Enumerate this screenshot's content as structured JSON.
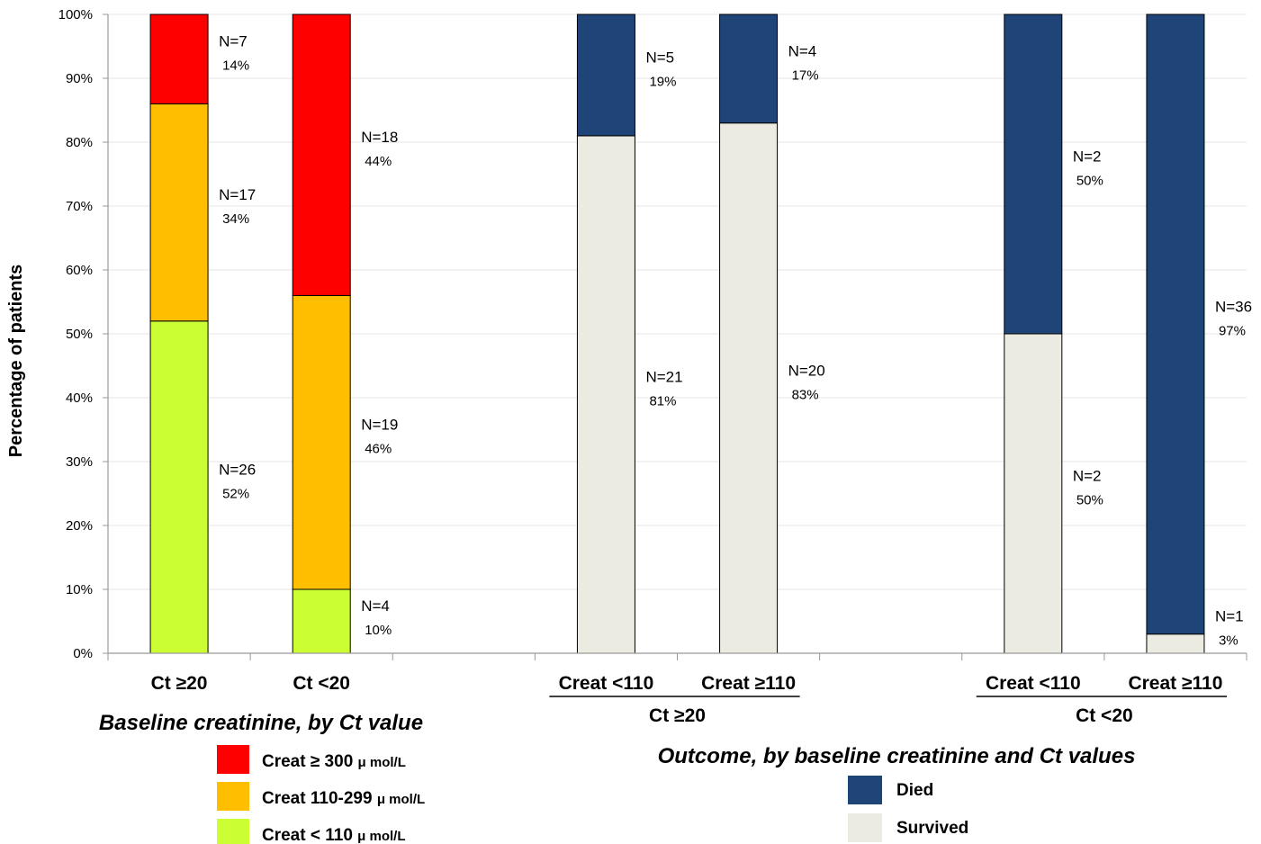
{
  "chart_data": {
    "type": "bar",
    "stacked": true,
    "ylabel": "Percentage of patients",
    "ylim": [
      0,
      100
    ],
    "yticks": [
      "0%",
      "10%",
      "20%",
      "30%",
      "40%",
      "50%",
      "60%",
      "70%",
      "80%",
      "90%",
      "100%"
    ],
    "grid": true,
    "colors": {
      "creat_high": "#ff0000",
      "creat_mid": "#ffbf00",
      "creat_low": "#ccff33",
      "died": "#1f4477",
      "survived": "#ecebe1"
    },
    "bars": [
      {
        "category": "Ct ≥20",
        "segments": [
          {
            "key": "creat_low",
            "value": 52,
            "n": "N=26",
            "pct": "52%"
          },
          {
            "key": "creat_mid",
            "value": 34,
            "n": "N=17",
            "pct": "34%"
          },
          {
            "key": "creat_high",
            "value": 14,
            "n": "N=7",
            "pct": "14%"
          }
        ]
      },
      {
        "category": "Ct <20",
        "segments": [
          {
            "key": "creat_low",
            "value": 10,
            "n": "N=4",
            "pct": "10%"
          },
          {
            "key": "creat_mid",
            "value": 46,
            "n": "N=19",
            "pct": "46%"
          },
          {
            "key": "creat_high",
            "value": 44,
            "n": "N=18",
            "pct": "44%"
          }
        ]
      },
      {
        "category": "",
        "segments": []
      },
      {
        "category": "Creat <110",
        "group": "Ct ≥20",
        "segments": [
          {
            "key": "survived",
            "value": 81,
            "n": "N=21",
            "pct": "81%"
          },
          {
            "key": "died",
            "value": 19,
            "n": "N=5",
            "pct": "19%"
          }
        ]
      },
      {
        "category": "Creat ≥110",
        "group": "Ct ≥20",
        "segments": [
          {
            "key": "survived",
            "value": 83,
            "n": "N=20",
            "pct": "83%"
          },
          {
            "key": "died",
            "value": 17,
            "n": "N=4",
            "pct": "17%"
          }
        ]
      },
      {
        "category": "",
        "segments": []
      },
      {
        "category": "Creat <110",
        "group": "Ct <20",
        "segments": [
          {
            "key": "survived",
            "value": 50,
            "n": "N=2",
            "pct": "50%"
          },
          {
            "key": "died",
            "value": 50,
            "n": "N=2",
            "pct": "50%"
          }
        ]
      },
      {
        "category": "Creat ≥110",
        "group": "Ct <20",
        "segments": [
          {
            "key": "survived",
            "value": 3,
            "n": "N=1",
            "pct": "3%"
          },
          {
            "key": "died",
            "value": 97,
            "n": "N=36",
            "pct": "97%"
          }
        ]
      }
    ],
    "groups": [
      "Ct ≥20",
      "Ct <20"
    ],
    "section_titles": {
      "left": "Baseline creatinine, by Ct value",
      "right": "Outcome, by baseline creatinine and Ct values"
    },
    "legend_left": [
      {
        "key": "creat_high",
        "label": "Creat ≥ 300",
        "unit": "μ mol/L"
      },
      {
        "key": "creat_mid",
        "label": "Creat 110-299",
        "unit": "μ mol/L"
      },
      {
        "key": "creat_low",
        "label": "Creat < 110",
        "unit": "μ mol/L"
      }
    ],
    "legend_right": [
      {
        "key": "died",
        "label": "Died"
      },
      {
        "key": "survived",
        "label": "Survived"
      }
    ]
  }
}
